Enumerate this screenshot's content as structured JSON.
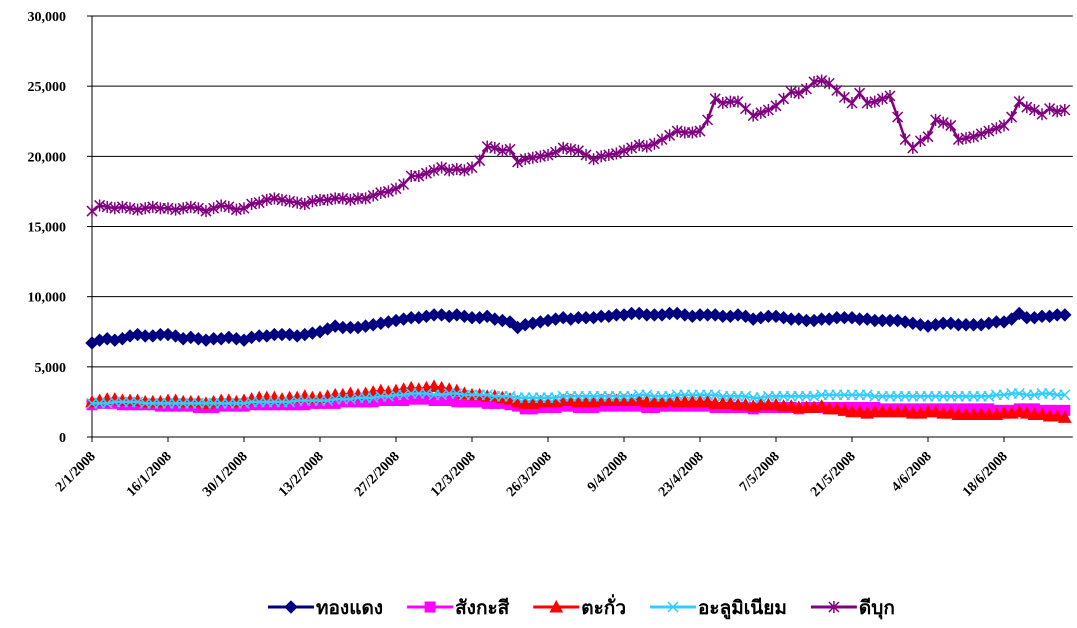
{
  "chart_data": {
    "type": "line",
    "categories": [
      "2/1/2008",
      null,
      null,
      null,
      null,
      null,
      null,
      null,
      null,
      null,
      "16/1/2008",
      null,
      null,
      null,
      null,
      null,
      null,
      null,
      null,
      null,
      "30/1/2008",
      null,
      null,
      null,
      null,
      null,
      null,
      null,
      null,
      null,
      "13/2/2008",
      null,
      null,
      null,
      null,
      null,
      null,
      null,
      null,
      null,
      "27/2/2008",
      null,
      null,
      null,
      null,
      null,
      null,
      null,
      null,
      null,
      "12/3/2008",
      null,
      null,
      null,
      null,
      null,
      null,
      null,
      null,
      null,
      "26/3/2008",
      null,
      null,
      null,
      null,
      null,
      null,
      null,
      null,
      null,
      "9/4/2008",
      null,
      null,
      null,
      null,
      null,
      null,
      null,
      null,
      null,
      "23/4/2008",
      null,
      null,
      null,
      null,
      null,
      null,
      null,
      null,
      null,
      "7/5/2008",
      null,
      null,
      null,
      null,
      null,
      null,
      null,
      null,
      null,
      "21/5/2008",
      null,
      null,
      null,
      null,
      null,
      null,
      null,
      null,
      null,
      "4/6/2008",
      null,
      null,
      null,
      null,
      null,
      null,
      null,
      null,
      null,
      "18/6/2008",
      null,
      null,
      null,
      null,
      null,
      null,
      null,
      null
    ],
    "series": [
      {
        "name": "ทองแดง",
        "color": "#000080",
        "marker": "diamond",
        "values": [
          6700,
          6900,
          7000,
          6900,
          7000,
          7200,
          7300,
          7200,
          7200,
          7300,
          7300,
          7200,
          7000,
          7100,
          7000,
          6900,
          7000,
          7000,
          7100,
          7000,
          6900,
          7100,
          7200,
          7200,
          7300,
          7300,
          7300,
          7200,
          7300,
          7400,
          7500,
          7700,
          7900,
          7800,
          7800,
          7800,
          7900,
          8000,
          8100,
          8200,
          8300,
          8400,
          8500,
          8500,
          8600,
          8700,
          8700,
          8600,
          8700,
          8600,
          8500,
          8500,
          8600,
          8400,
          8300,
          8200,
          7800,
          8000,
          8100,
          8200,
          8300,
          8400,
          8500,
          8400,
          8500,
          8500,
          8500,
          8600,
          8600,
          8700,
          8700,
          8800,
          8800,
          8700,
          8700,
          8700,
          8800,
          8800,
          8700,
          8600,
          8700,
          8700,
          8700,
          8600,
          8600,
          8700,
          8600,
          8400,
          8500,
          8600,
          8600,
          8500,
          8400,
          8400,
          8300,
          8300,
          8400,
          8400,
          8500,
          8500,
          8500,
          8400,
          8400,
          8300,
          8300,
          8300,
          8300,
          8200,
          8100,
          8000,
          7900,
          8000,
          8100,
          8100,
          8000,
          8000,
          8000,
          8000,
          8100,
          8200,
          8200,
          8400,
          8800,
          8500,
          8500,
          8600,
          8600,
          8700,
          8700
        ]
      },
      {
        "name": "สังกะสี",
        "color": "#ff00ff",
        "marker": "square",
        "values": [
          2300,
          2400,
          2400,
          2400,
          2300,
          2300,
          2300,
          2300,
          2300,
          2200,
          2200,
          2200,
          2200,
          2200,
          2100,
          2100,
          2100,
          2200,
          2200,
          2200,
          2200,
          2300,
          2300,
          2300,
          2300,
          2300,
          2300,
          2300,
          2300,
          2400,
          2400,
          2400,
          2400,
          2500,
          2500,
          2500,
          2500,
          2500,
          2600,
          2600,
          2600,
          2600,
          2700,
          2700,
          2700,
          2600,
          2600,
          2600,
          2500,
          2500,
          2500,
          2500,
          2400,
          2400,
          2400,
          2300,
          2200,
          2000,
          2000,
          2100,
          2100,
          2100,
          2200,
          2200,
          2100,
          2100,
          2100,
          2200,
          2200,
          2200,
          2200,
          2200,
          2200,
          2100,
          2100,
          2200,
          2200,
          2200,
          2200,
          2200,
          2200,
          2200,
          2100,
          2100,
          2100,
          2100,
          2100,
          2000,
          2100,
          2100,
          2100,
          2100,
          2100,
          2000,
          2100,
          2100,
          2100,
          2100,
          2100,
          2100,
          2100,
          2100,
          2100,
          2100,
          2000,
          2000,
          2000,
          2000,
          2000,
          2000,
          2000,
          2000,
          2000,
          2000,
          2000,
          2000,
          2000,
          2000,
          2000,
          1900,
          1900,
          1900,
          2000,
          2000,
          2000,
          1900,
          1900,
          1900,
          1900
        ]
      },
      {
        "name": "ตะกั่ว",
        "color": "#ff0000",
        "marker": "triangle",
        "values": [
          2500,
          2600,
          2700,
          2700,
          2600,
          2600,
          2600,
          2500,
          2500,
          2500,
          2600,
          2600,
          2500,
          2500,
          2500,
          2400,
          2500,
          2600,
          2600,
          2500,
          2600,
          2700,
          2800,
          2800,
          2800,
          2700,
          2800,
          2800,
          2900,
          2800,
          2800,
          2900,
          3000,
          3000,
          3100,
          3000,
          3100,
          3200,
          3300,
          3200,
          3300,
          3400,
          3500,
          3400,
          3500,
          3600,
          3500,
          3400,
          3300,
          3100,
          3000,
          3000,
          2900,
          2900,
          2800,
          2700,
          2500,
          2400,
          2400,
          2500,
          2500,
          2500,
          2600,
          2600,
          2500,
          2500,
          2500,
          2600,
          2600,
          2600,
          2600,
          2600,
          2600,
          2500,
          2500,
          2500,
          2600,
          2500,
          2500,
          2500,
          2500,
          2500,
          2400,
          2400,
          2400,
          2300,
          2300,
          2200,
          2300,
          2300,
          2300,
          2200,
          2200,
          2100,
          2100,
          2100,
          2200,
          2000,
          2000,
          1900,
          1800,
          1800,
          1700,
          1800,
          1800,
          1800,
          1800,
          1800,
          1700,
          1700,
          1800,
          1800,
          1700,
          1700,
          1600,
          1600,
          1600,
          1600,
          1600,
          1600,
          1700,
          1700,
          1800,
          1700,
          1600,
          1600,
          1500,
          1500,
          1400
        ]
      },
      {
        "name": "อะลูมิเนียม",
        "color": "#33ccff",
        "marker": "x",
        "values": [
          2400,
          2400,
          2400,
          2500,
          2500,
          2500,
          2500,
          2400,
          2400,
          2400,
          2400,
          2400,
          2400,
          2400,
          2400,
          2400,
          2400,
          2400,
          2400,
          2400,
          2400,
          2500,
          2500,
          2500,
          2500,
          2500,
          2500,
          2600,
          2600,
          2600,
          2600,
          2600,
          2700,
          2700,
          2700,
          2800,
          2800,
          2800,
          2900,
          2900,
          3000,
          3000,
          3100,
          3100,
          3100,
          3000,
          3000,
          3100,
          3100,
          3000,
          3000,
          3000,
          3000,
          2900,
          2900,
          2900,
          2800,
          2800,
          2800,
          2800,
          2800,
          2800,
          2900,
          2900,
          2900,
          2900,
          2900,
          2900,
          2900,
          2900,
          2900,
          2900,
          3000,
          3000,
          2900,
          2900,
          2900,
          3000,
          3000,
          3000,
          3000,
          3000,
          3000,
          2900,
          2900,
          2900,
          2900,
          2800,
          2800,
          2900,
          2900,
          2900,
          2900,
          2900,
          2900,
          2900,
          3000,
          3000,
          3000,
          3000,
          3000,
          3000,
          3000,
          2900,
          2900,
          2900,
          2900,
          2900,
          2900,
          2900,
          2900,
          2900,
          2900,
          2900,
          2900,
          2900,
          2900,
          2900,
          2900,
          3000,
          3000,
          3100,
          3100,
          3000,
          3000,
          3100,
          3100,
          3000,
          3000
        ]
      },
      {
        "name": "ดีบุก",
        "color": "#800080",
        "marker": "star",
        "values": [
          16100,
          16500,
          16400,
          16300,
          16400,
          16300,
          16200,
          16300,
          16400,
          16300,
          16300,
          16200,
          16300,
          16400,
          16300,
          16100,
          16300,
          16500,
          16400,
          16200,
          16300,
          16600,
          16700,
          16900,
          17000,
          16900,
          16800,
          16700,
          16600,
          16800,
          16900,
          16900,
          17000,
          17000,
          16900,
          17000,
          17000,
          17200,
          17400,
          17500,
          17700,
          18000,
          18600,
          18600,
          18800,
          19000,
          19200,
          19000,
          19100,
          19000,
          19200,
          19700,
          20700,
          20600,
          20400,
          20500,
          19600,
          19800,
          19900,
          20000,
          20100,
          20300,
          20600,
          20500,
          20400,
          20100,
          19800,
          20000,
          20100,
          20200,
          20400,
          20600,
          20800,
          20700,
          20900,
          21200,
          21500,
          21800,
          21700,
          21700,
          21800,
          22600,
          24100,
          23800,
          23900,
          23900,
          23400,
          22900,
          23100,
          23300,
          23600,
          24100,
          24600,
          24500,
          24800,
          25300,
          25400,
          25200,
          24700,
          24200,
          23800,
          24500,
          23800,
          23900,
          24100,
          24300,
          22800,
          21200,
          20600,
          21100,
          21400,
          22600,
          22400,
          22200,
          21200,
          21300,
          21400,
          21600,
          21800,
          22000,
          22200,
          22800,
          23900,
          23500,
          23300,
          23000,
          23400,
          23200,
          23300
        ]
      }
    ],
    "ylim": [
      0,
      30000
    ],
    "yticks": [
      0,
      {
        "value": 5000,
        "label": "5,000"
      },
      {
        "value": 10000,
        "label": "10,000"
      },
      {
        "value": 15000,
        "label": "15,000"
      },
      {
        "value": 20000,
        "label": "20,000"
      },
      {
        "value": 25000,
        "label": "25,000"
      },
      {
        "value": 30000,
        "label": "30,000"
      }
    ],
    "grid": true,
    "legend": "bottom"
  }
}
